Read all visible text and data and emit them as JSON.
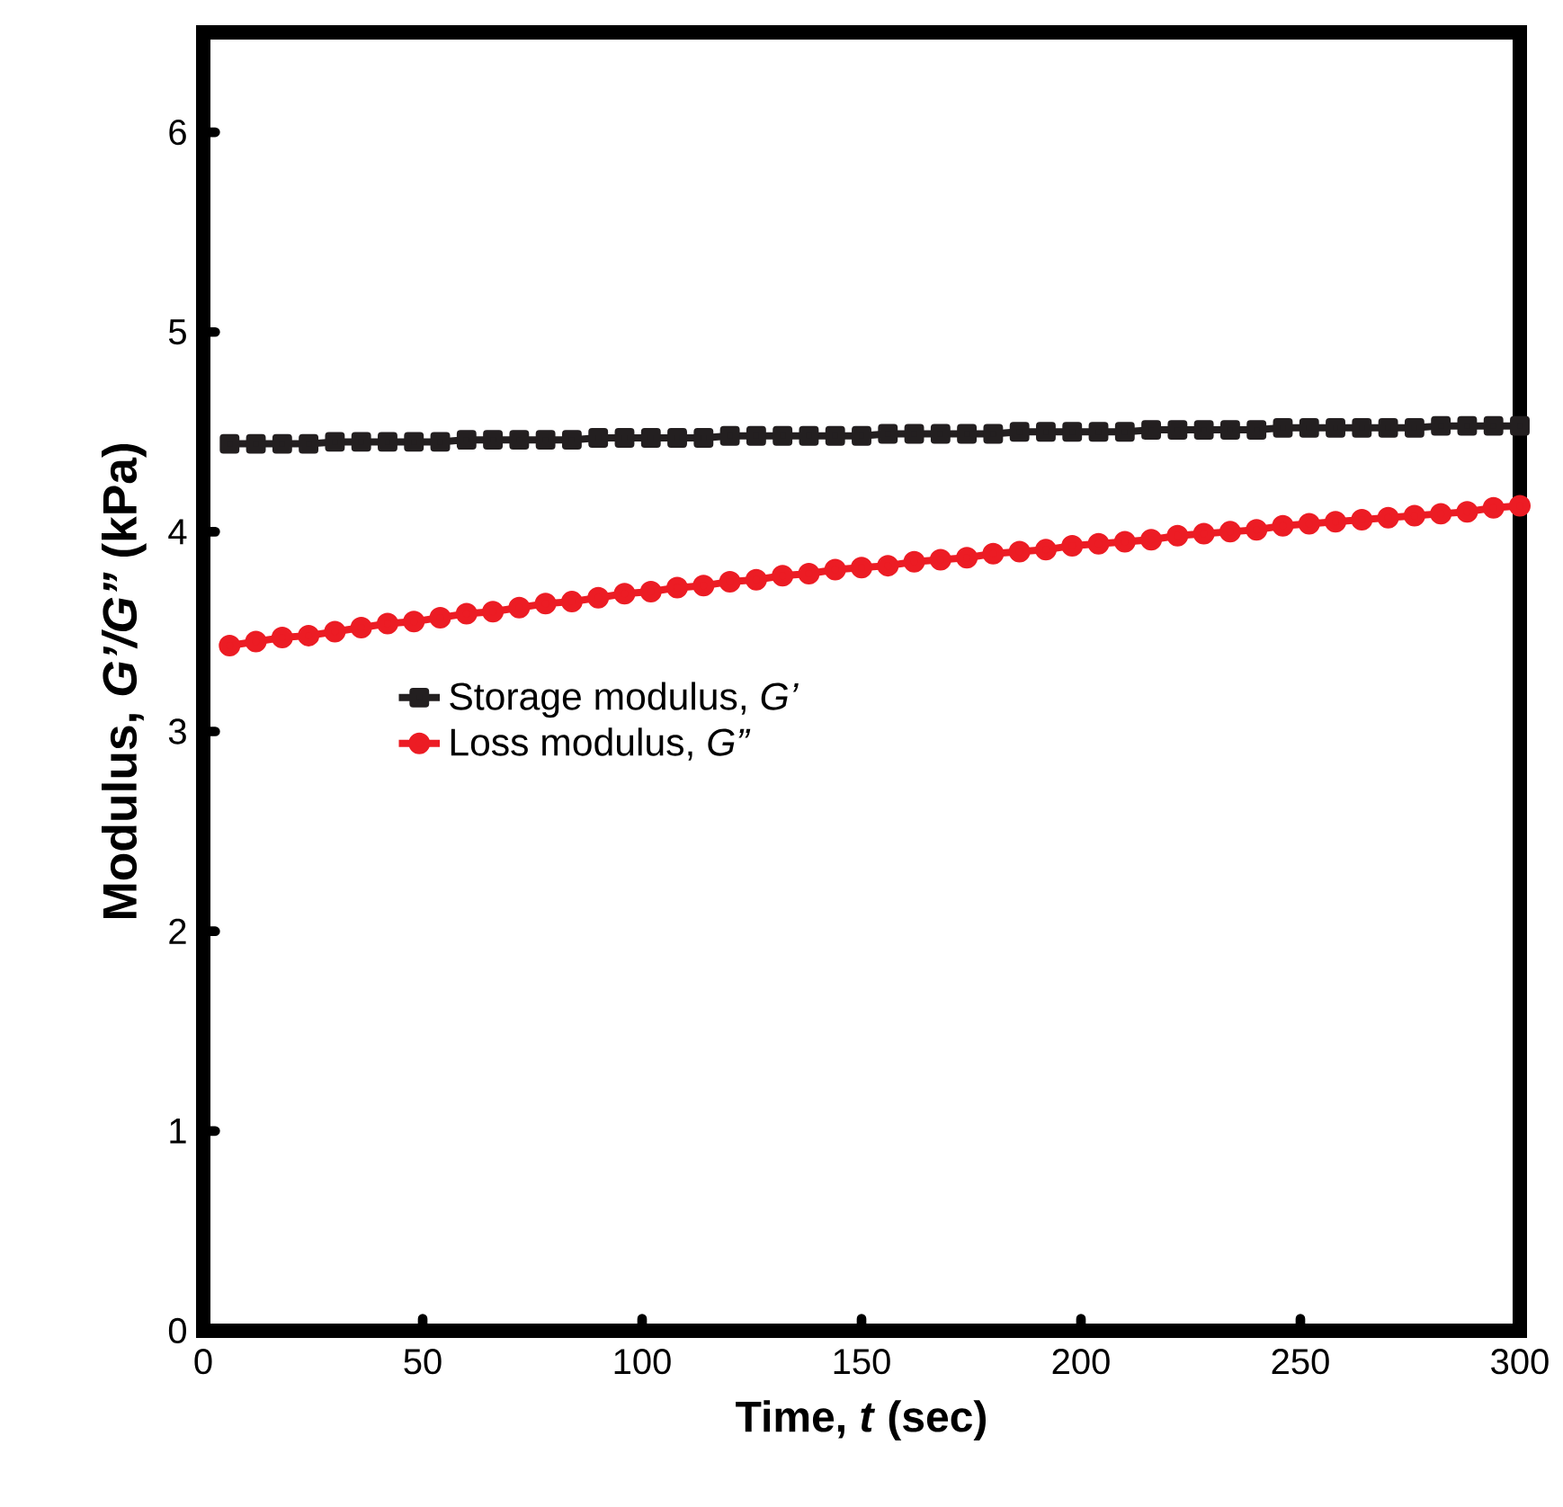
{
  "chart_data": {
    "type": "line",
    "xlabel": "Time, *t* (sec)",
    "ylabel": "Modulus, *G’/G”* (kPa)",
    "x": [
      6,
      12,
      18,
      24,
      30,
      36,
      42,
      48,
      54,
      60,
      66,
      72,
      78,
      84,
      90,
      96,
      102,
      108,
      114,
      120,
      126,
      132,
      138,
      144,
      150,
      156,
      162,
      168,
      174,
      180,
      186,
      192,
      198,
      204,
      210,
      216,
      222,
      228,
      234,
      240,
      246,
      252,
      258,
      264,
      270,
      276,
      282,
      288,
      294,
      300
    ],
    "series": [
      {
        "name": "Storage modulus, *G’*",
        "color": "#231f20",
        "marker": "square",
        "line_style": "solid",
        "values": [
          4.44,
          4.44,
          4.44,
          4.44,
          4.45,
          4.45,
          4.45,
          4.45,
          4.45,
          4.46,
          4.46,
          4.46,
          4.46,
          4.46,
          4.47,
          4.47,
          4.47,
          4.47,
          4.47,
          4.48,
          4.48,
          4.48,
          4.48,
          4.48,
          4.48,
          4.49,
          4.49,
          4.49,
          4.49,
          4.49,
          4.5,
          4.5,
          4.5,
          4.5,
          4.5,
          4.51,
          4.51,
          4.51,
          4.51,
          4.51,
          4.52,
          4.52,
          4.52,
          4.52,
          4.52,
          4.52,
          4.53,
          4.53,
          4.53,
          4.53
        ]
      },
      {
        "name": "Loss modulus, *G”*",
        "color": "#ec1c24",
        "marker": "circle",
        "line_style": "solid",
        "values": [
          3.43,
          3.45,
          3.47,
          3.48,
          3.5,
          3.52,
          3.54,
          3.55,
          3.57,
          3.59,
          3.6,
          3.62,
          3.64,
          3.65,
          3.67,
          3.69,
          3.7,
          3.72,
          3.73,
          3.75,
          3.76,
          3.78,
          3.79,
          3.81,
          3.82,
          3.83,
          3.85,
          3.86,
          3.87,
          3.89,
          3.9,
          3.91,
          3.93,
          3.94,
          3.95,
          3.96,
          3.98,
          3.99,
          4.0,
          4.01,
          4.03,
          4.04,
          4.05,
          4.06,
          4.07,
          4.08,
          4.09,
          4.1,
          4.12,
          4.13
        ]
      }
    ],
    "xlim": [
      0,
      300
    ],
    "xticks": [
      0,
      50,
      100,
      150,
      200,
      250,
      300
    ],
    "ylim": [
      0,
      6.5
    ],
    "yticks": [
      0,
      1,
      2,
      3,
      4,
      5,
      6
    ],
    "grid": false,
    "legend": "left"
  }
}
